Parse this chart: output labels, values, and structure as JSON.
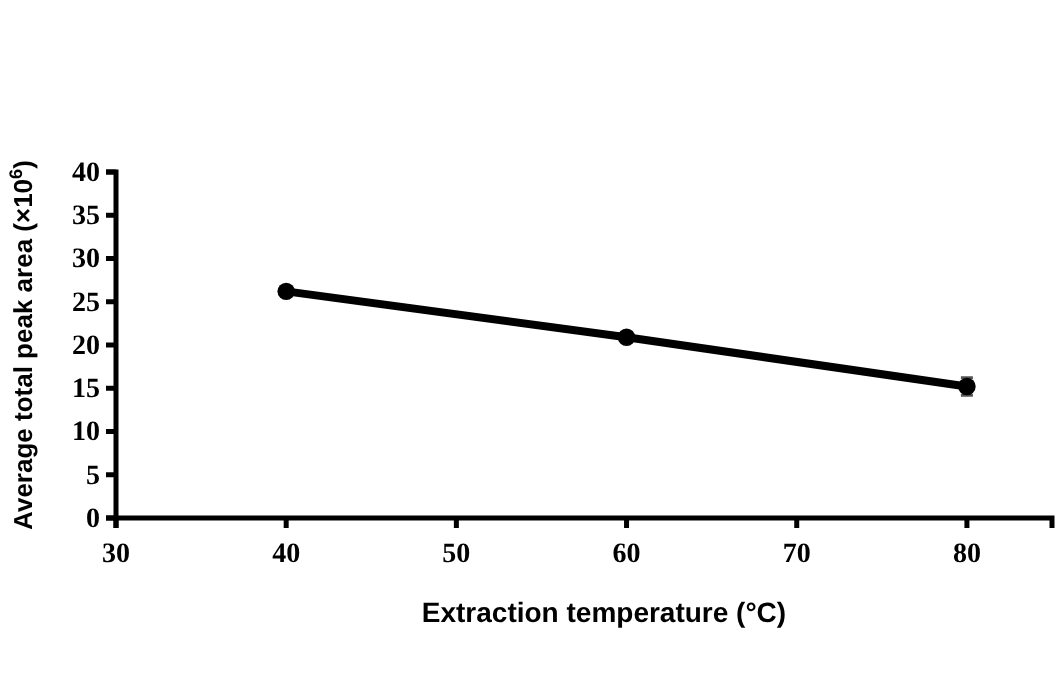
{
  "chart_data": {
    "type": "line",
    "xlabel": "Extraction temperature (°C)",
    "ylabel": "Average total peak area (×10$^{6}$)",
    "x": [
      40,
      60,
      80
    ],
    "series": [
      {
        "color": "#000000",
        "values": [
          26.2,
          20.9,
          15.2
        ],
        "errors": [
          0.3,
          0.3,
          1.0
        ]
      }
    ],
    "xlim": [
      30,
      85
    ],
    "xticks": [
      30,
      40,
      50,
      60,
      70,
      80
    ],
    "ylim": [
      0,
      40
    ],
    "yticks": [
      0,
      5,
      10,
      15,
      20,
      25,
      30,
      35,
      40
    ],
    "marker": "circle",
    "line_style": "solid"
  }
}
